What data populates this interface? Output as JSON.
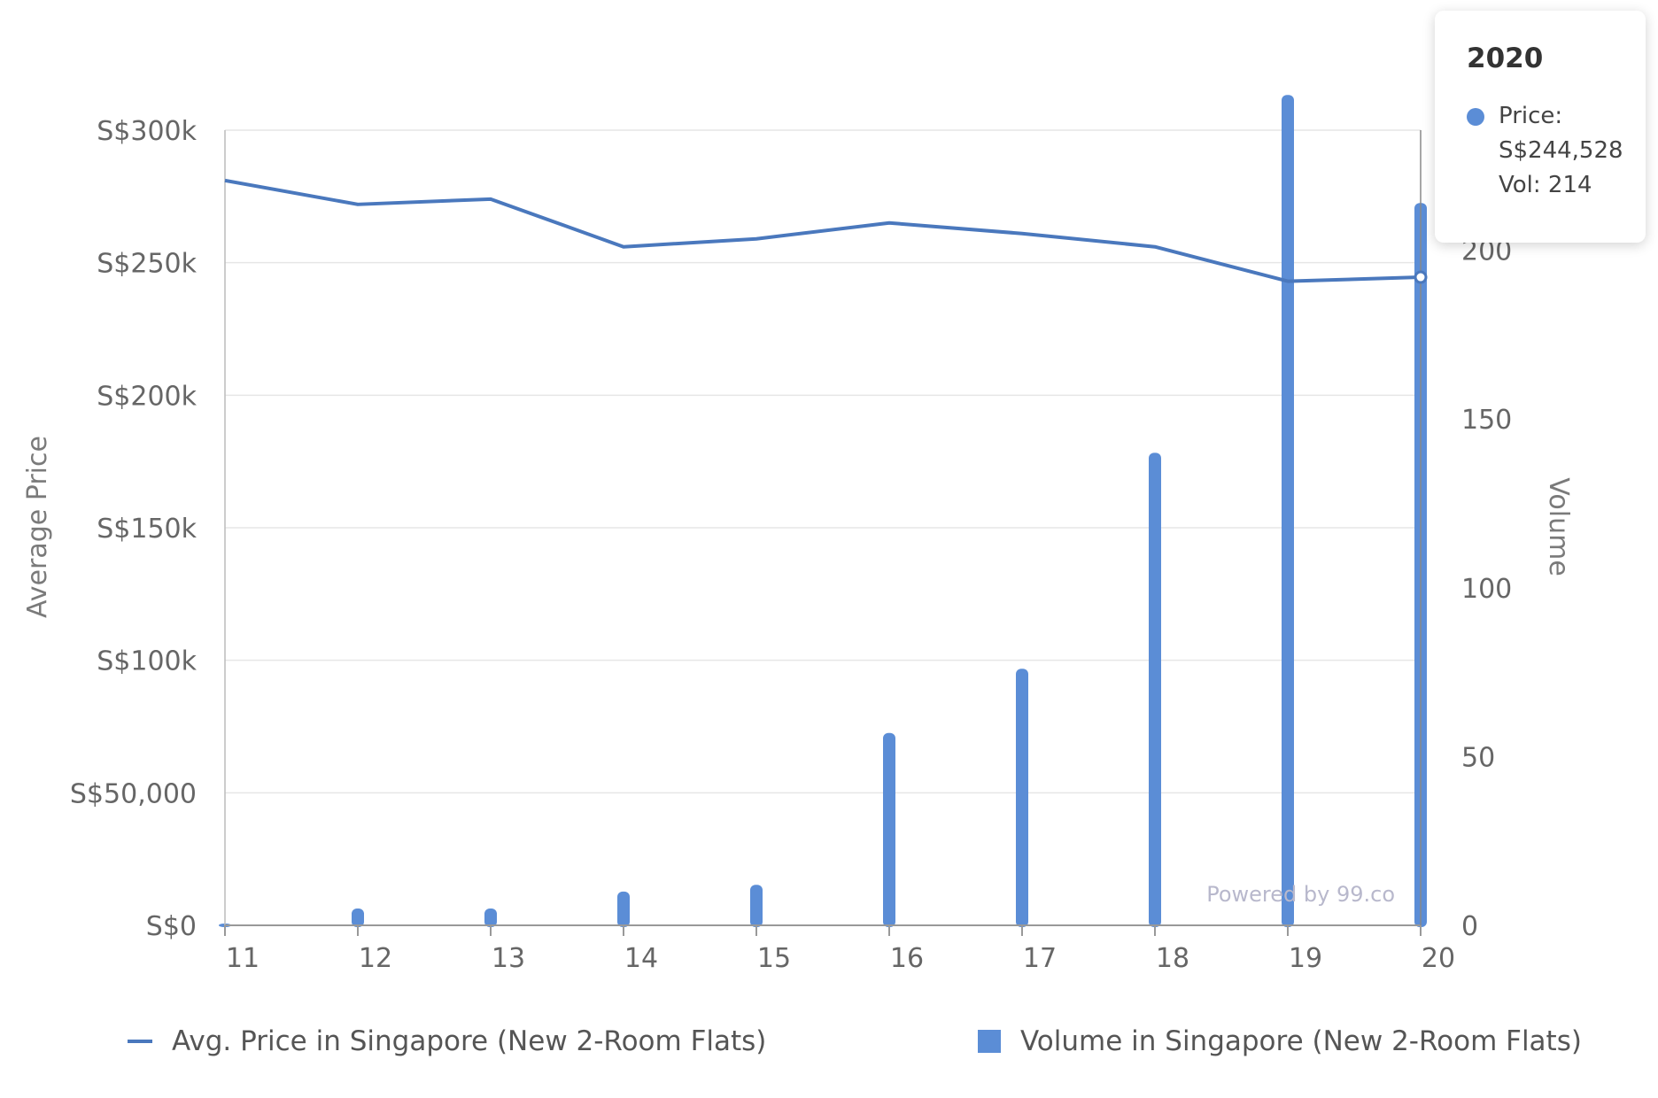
{
  "chart_data": {
    "type": "bar+line",
    "categories": [
      "11",
      "12",
      "13",
      "14",
      "15",
      "16",
      "17",
      "18",
      "19",
      "20"
    ],
    "series": [
      {
        "name": "Avg. Price in Singapore (New 2-Room Flats)",
        "type": "line",
        "axis": "left",
        "color": "#4a78bd",
        "values": [
          281000,
          272000,
          274000,
          256000,
          259000,
          265000,
          261000,
          256000,
          243000,
          244528
        ]
      },
      {
        "name": "Volume in Singapore (New 2-Room Flats)",
        "type": "bar",
        "axis": "right",
        "color": "#5b8dd6",
        "values": [
          0,
          5,
          5,
          10,
          12,
          57,
          76,
          140,
          246,
          214
        ]
      }
    ],
    "y_left": {
      "label": "Average Price",
      "min": 0,
      "max": 300000,
      "ticks": [
        0,
        50000,
        100000,
        150000,
        200000,
        250000,
        300000
      ],
      "tick_labels": [
        "S$0",
        "S$50,000",
        "S$100k",
        "S$150k",
        "S$200k",
        "S$250k",
        "S$300k"
      ]
    },
    "y_right": {
      "label": "Volume",
      "min": 0,
      "max": 250,
      "ticks": [
        0,
        50,
        100,
        150,
        200
      ],
      "tick_labels": [
        "0",
        "50",
        "100",
        "150",
        "200"
      ]
    },
    "grid": true,
    "legend": "bottom"
  },
  "tooltip": {
    "title": "2020",
    "price_line": "Price:",
    "price_value": "S$244,528",
    "vol_line": "Vol: 214",
    "category": "20"
  },
  "credit": "Powered by 99.co",
  "colors": {
    "line": "#4a78bd",
    "bar": "#5b8dd6",
    "grid": "#e6e6e6",
    "axis": "#bbbbbb"
  }
}
